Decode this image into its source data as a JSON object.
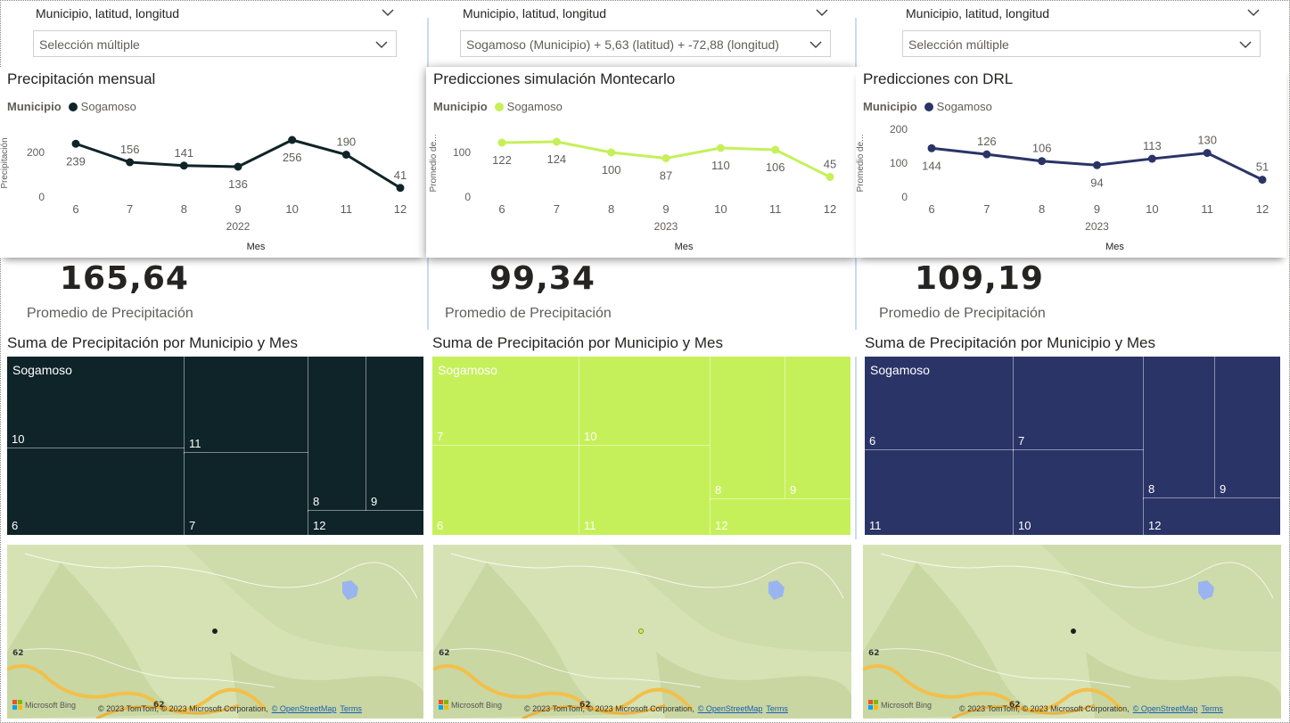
{
  "filter_field_label": "Municipio, latitud, longitud",
  "columns": [
    {
      "slicer_value": "Selección múltiple",
      "chart": {
        "title": "Precipitación mensual",
        "legend_title": "Municipio",
        "legend_name": "Sogamoso",
        "ylabel": "Precipitación",
        "xlabel": "Mes",
        "year": "2022",
        "yticks": [
          "0",
          "200"
        ],
        "color": "#0f2428"
      },
      "kpi": {
        "value": "165,64",
        "label": "Promedio de Precipitación"
      },
      "treemap": {
        "title": "Suma de Precipitación por Municipio y Mes",
        "group": "Sogamoso",
        "color": "#0f2428",
        "cells": [
          "10",
          "6",
          "11",
          "7",
          "8",
          "9",
          "12"
        ]
      },
      "map": {
        "pin_color": "#1f1f1f"
      }
    },
    {
      "slicer_value": "Sogamoso (Municipio) + 5,63 (latitud) + -72,88 (longitud)",
      "chart": {
        "title": "Predicciones simulación Montecarlo",
        "legend_title": "Municipio",
        "legend_name": "Sogamoso",
        "ylabel": "Promedio de...",
        "xlabel": "Mes",
        "year": "2023",
        "yticks": [
          "0",
          "100"
        ],
        "color": "#c6f05a"
      },
      "kpi": {
        "value": "99,34",
        "label": "Promedio de Precipitación"
      },
      "treemap": {
        "title": "Suma de Precipitación por Municipio y Mes",
        "group": "Sogamoso",
        "color": "#c6f05a",
        "cells": [
          "7",
          "6",
          "10",
          "11",
          "8",
          "9",
          "12"
        ]
      },
      "map": {
        "pin_color": "#c6f05a"
      }
    },
    {
      "slicer_value": "Selección múltiple",
      "chart": {
        "title": "Predicciones con DRL",
        "legend_title": "Municipio",
        "legend_name": "Sogamoso",
        "ylabel": "Promedio de...",
        "xlabel": "Mes",
        "year": "2023",
        "yticks": [
          "0",
          "100",
          "200"
        ],
        "color": "#2b3467"
      },
      "kpi": {
        "value": "109,19",
        "label": "Promedio de Precipitación"
      },
      "treemap": {
        "title": "Suma de Precipitación por Municipio y Mes",
        "group": "Sogamoso",
        "color": "#2b3467",
        "cells": [
          "6",
          "11",
          "7",
          "10",
          "8",
          "9",
          "12"
        ]
      },
      "map": {
        "pin_color": "#1f1f1f"
      }
    }
  ],
  "map_attribution": {
    "bing": "Microsoft Bing",
    "text": "© 2023 TomTom, © 2023 Microsoft Corporation,",
    "osm": "© OpenStreetMap",
    "terms": "Terms",
    "road_label": "62"
  },
  "chart_data": [
    {
      "type": "line",
      "title": "Precipitación mensual",
      "xlabel": "Mes",
      "ylabel": "Precipitación",
      "x": [
        6,
        7,
        8,
        9,
        10,
        11,
        12
      ],
      "series": [
        {
          "name": "Sogamoso",
          "values": [
            239,
            156,
            141,
            136,
            256,
            190,
            41
          ]
        }
      ],
      "ylim": [
        0,
        280
      ],
      "legend": "top-left"
    },
    {
      "type": "line",
      "title": "Predicciones simulación Montecarlo",
      "xlabel": "Mes",
      "ylabel": "Promedio de...",
      "x": [
        6,
        7,
        8,
        9,
        10,
        11,
        12
      ],
      "series": [
        {
          "name": "Sogamoso",
          "values": [
            122,
            124,
            100,
            87,
            110,
            106,
            45
          ]
        }
      ],
      "ylim": [
        0,
        150
      ],
      "legend": "top-left"
    },
    {
      "type": "line",
      "title": "Predicciones con DRL",
      "xlabel": "Mes",
      "ylabel": "Promedio de...",
      "x": [
        6,
        7,
        8,
        9,
        10,
        11,
        12
      ],
      "series": [
        {
          "name": "Sogamoso",
          "values": [
            144,
            126,
            106,
            94,
            113,
            130,
            51
          ]
        }
      ],
      "ylim": [
        0,
        200
      ],
      "legend": "top-left"
    }
  ]
}
